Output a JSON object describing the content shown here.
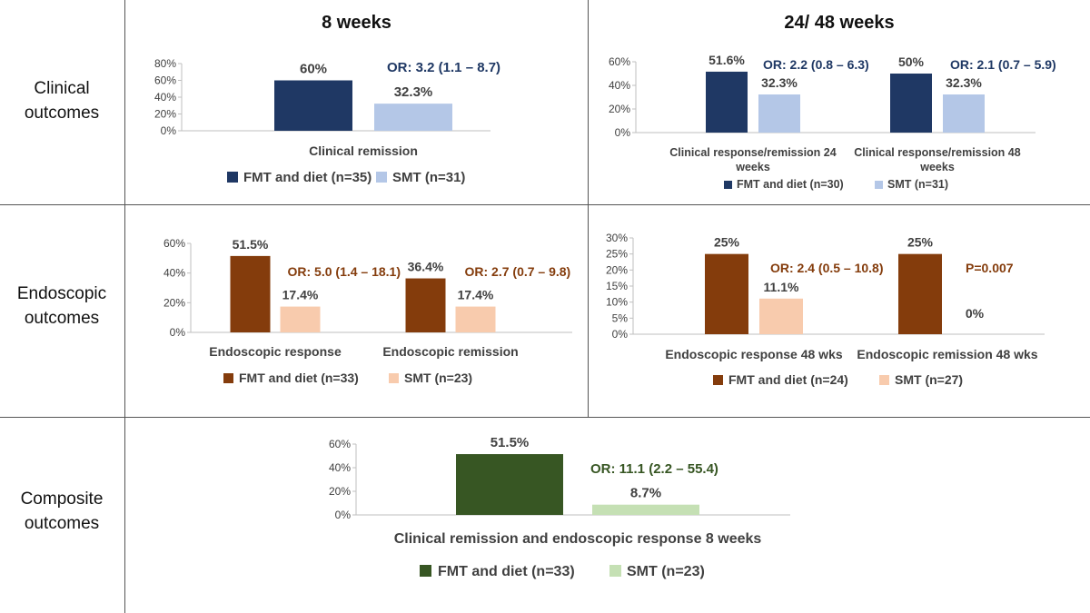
{
  "row_labels": {
    "clinical": [
      "Clinical",
      "outcomes"
    ],
    "endoscopic": [
      "Endoscopic",
      "outcomes"
    ],
    "composite": [
      "Composite",
      "outcomes"
    ]
  },
  "column_headers": {
    "short": "8 weeks",
    "long": "24/ 48 weeks"
  },
  "colors": {
    "navy": "#1f3864",
    "light_blue": "#b4c7e7",
    "brown": "#843c0c",
    "peach": "#f8cbad",
    "green": "#375623",
    "light_green": "#c5e0b4",
    "axis_text": "#404040"
  },
  "chart_data": [
    {
      "id": "clinical_8w",
      "type": "bar",
      "categories": [
        "Clinical remission"
      ],
      "series": [
        {
          "name": "FMT and diet (n=35)",
          "values": [
            60
          ],
          "labels": [
            "60%"
          ],
          "color": "#1f3864"
        },
        {
          "name": "SMT (n=31)",
          "values": [
            32.3
          ],
          "labels": [
            "32.3%"
          ],
          "color": "#b4c7e7"
        }
      ],
      "ylim": [
        0,
        80
      ],
      "yticks": [
        0,
        20,
        40,
        60,
        80
      ],
      "ytick_labels": [
        "0%",
        "20%",
        "40%",
        "60%",
        "80%"
      ],
      "annotations": [
        {
          "text": "OR: 3.2 (1.1 – 8.7)",
          "color": "#1f3864",
          "category": 0
        }
      ],
      "legend_position": "bottom"
    },
    {
      "id": "clinical_24_48w",
      "type": "bar",
      "categories": [
        [
          "Clinical response/remission 24",
          "weeks"
        ],
        [
          "Clinical response/remission 48",
          "weeks"
        ]
      ],
      "series": [
        {
          "name": "FMT and diet (n=30)",
          "values": [
            51.6,
            50
          ],
          "labels": [
            "51.6%",
            "50%"
          ],
          "color": "#1f3864"
        },
        {
          "name": "SMT (n=31)",
          "values": [
            32.3,
            32.3
          ],
          "labels": [
            "32.3%",
            "32.3%"
          ],
          "color": "#b4c7e7"
        }
      ],
      "ylim": [
        0,
        60
      ],
      "yticks": [
        0,
        20,
        40,
        60
      ],
      "ytick_labels": [
        "0%",
        "20%",
        "40%",
        "60%"
      ],
      "annotations": [
        {
          "text": "OR: 2.2 (0.8 – 6.3)",
          "color": "#1f3864",
          "category": 0
        },
        {
          "text": "OR: 2.1 (0.7 – 5.9)",
          "color": "#1f3864",
          "category": 1
        }
      ],
      "legend_position": "bottom"
    },
    {
      "id": "endoscopic_8w",
      "type": "bar",
      "categories": [
        "Endoscopic response",
        "Endoscopic remission"
      ],
      "series": [
        {
          "name": "FMT and diet (n=33)",
          "values": [
            51.5,
            36.4
          ],
          "labels": [
            "51.5%",
            "36.4%"
          ],
          "color": "#843c0c"
        },
        {
          "name": "SMT (n=23)",
          "values": [
            17.4,
            17.4
          ],
          "labels": [
            "17.4%",
            "17.4%"
          ],
          "color": "#f8cbad"
        }
      ],
      "ylim": [
        0,
        60
      ],
      "yticks": [
        0,
        20,
        40,
        60
      ],
      "ytick_labels": [
        "0%",
        "20%",
        "40%",
        "60%"
      ],
      "annotations": [
        {
          "text": "OR: 5.0 (1.4 – 18.1)",
          "color": "#843c0c",
          "category": 0
        },
        {
          "text": "OR: 2.7 (0.7 – 9.8)",
          "color": "#843c0c",
          "category": 1
        }
      ],
      "legend_position": "bottom"
    },
    {
      "id": "endoscopic_48w",
      "type": "bar",
      "categories": [
        "Endoscopic response 48 wks",
        "Endoscopic remission 48 wks"
      ],
      "series": [
        {
          "name": "FMT and diet (n=24)",
          "values": [
            25,
            25
          ],
          "labels": [
            "25%",
            "25%"
          ],
          "color": "#843c0c"
        },
        {
          "name": "SMT (n=27)",
          "values": [
            11.1,
            0
          ],
          "labels": [
            "11.1%",
            "0%"
          ],
          "color": "#f8cbad"
        }
      ],
      "ylim": [
        0,
        30
      ],
      "yticks": [
        0,
        5,
        10,
        15,
        20,
        25,
        30
      ],
      "ytick_labels": [
        "0%",
        "5%",
        "10%",
        "15%",
        "20%",
        "25%",
        "30%"
      ],
      "annotations": [
        {
          "text": "OR: 2.4 (0.5 – 10.8)",
          "color": "#843c0c",
          "category": 0
        },
        {
          "text": "P=0.007",
          "color": "#843c0c",
          "category": 1
        }
      ],
      "legend_position": "bottom"
    },
    {
      "id": "composite_8w",
      "type": "bar",
      "categories": [
        "Clinical remission and endoscopic response 8 weeks"
      ],
      "series": [
        {
          "name": "FMT and diet (n=33)",
          "values": [
            51.5
          ],
          "labels": [
            "51.5%"
          ],
          "color": "#375623"
        },
        {
          "name": "SMT (n=23)",
          "values": [
            8.7
          ],
          "labels": [
            "8.7%"
          ],
          "color": "#c5e0b4"
        }
      ],
      "ylim": [
        0,
        60
      ],
      "yticks": [
        0,
        20,
        40,
        60
      ],
      "ytick_labels": [
        "0%",
        "20%",
        "40%",
        "60%"
      ],
      "annotations": [
        {
          "text": "OR: 11.1 (2.2 – 55.4)",
          "color": "#375623",
          "category": 0
        }
      ],
      "legend_position": "bottom"
    }
  ]
}
